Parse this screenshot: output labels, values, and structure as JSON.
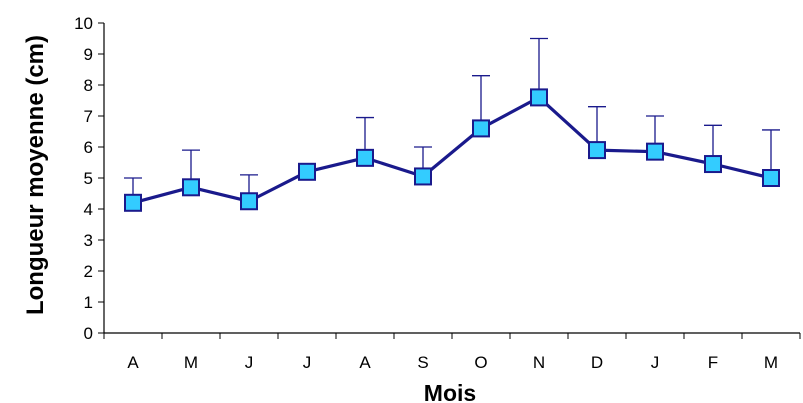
{
  "chart_data": {
    "type": "line",
    "title": "",
    "xlabel": "Mois",
    "ylabel": "Longueur moyenne (cm)",
    "categories": [
      "A",
      "M",
      "J",
      "J",
      "A",
      "S",
      "O",
      "N",
      "D",
      "J",
      "F",
      "M"
    ],
    "ylim": [
      0,
      10
    ],
    "yticks": [
      0,
      1,
      2,
      3,
      4,
      5,
      6,
      7,
      8,
      9,
      10
    ],
    "grid": false,
    "legend": "none",
    "series": [
      {
        "values": [
          4.2,
          4.7,
          4.25,
          5.2,
          5.65,
          5.05,
          6.6,
          7.6,
          5.9,
          5.85,
          5.45,
          5.0
        ],
        "error_upper": [
          0.8,
          1.2,
          0.85,
          0.0,
          1.3,
          0.95,
          1.7,
          1.9,
          1.4,
          1.15,
          1.25,
          1.55
        ]
      }
    ],
    "colors": {
      "line": "#1a1a8c",
      "marker_fill": "#33ccff",
      "marker_stroke": "#1a1a8c",
      "error_bar": "#1a1a8c",
      "axis": "#000000"
    }
  }
}
